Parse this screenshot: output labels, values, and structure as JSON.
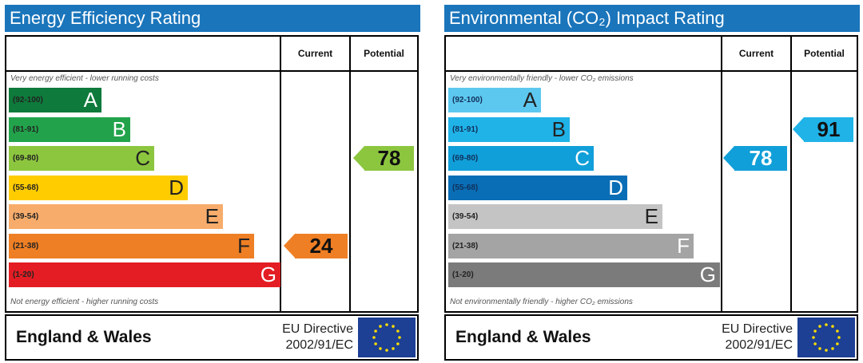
{
  "colors": {
    "title_bar": "#1a75bb",
    "energy_bands": [
      "#0e7a3b",
      "#22a34b",
      "#8cc63f",
      "#ffcc00",
      "#f7ac6b",
      "#ef7f24",
      "#e31d23"
    ],
    "co2_bands": [
      "#5dc8ef",
      "#20b3e8",
      "#119fd9",
      "#0a6eb6",
      "#c4c4c4",
      "#a4a4a4",
      "#7b7b7b"
    ],
    "eu_flag_blue": "#1d3f94",
    "eu_star": "#ffdd00"
  },
  "panels": [
    {
      "title": "Energy Efficiency Rating",
      "header_current": "Current",
      "header_potential": "Potential",
      "caption_top": "Very energy efficient - lower running costs",
      "caption_bottom": "Not energy efficient - higher running costs",
      "footer_region": "England & Wales",
      "footer_directive_line1": "EU Directive",
      "footer_directive_line2": "2002/91/EC"
    },
    {
      "title": "Environmental (CO₂) Impact Rating",
      "header_current": "Current",
      "header_potential": "Potential",
      "caption_top": "Very environmentally friendly - lower CO₂ emissions",
      "caption_bottom": "Not environmentally friendly - higher CO₂ emissions",
      "footer_region": "England & Wales",
      "footer_directive_line1": "EU Directive",
      "footer_directive_line2": "2002/91/EC"
    }
  ],
  "chart_data": [
    {
      "type": "table",
      "title": "Energy Efficiency Rating",
      "bands": [
        {
          "range": "(92-100)",
          "letter": "A",
          "min": 92,
          "max": 100
        },
        {
          "range": "(81-91)",
          "letter": "B",
          "min": 81,
          "max": 91
        },
        {
          "range": "(69-80)",
          "letter": "C",
          "min": 69,
          "max": 80
        },
        {
          "range": "(55-68)",
          "letter": "D",
          "min": 55,
          "max": 68
        },
        {
          "range": "(39-54)",
          "letter": "E",
          "min": 39,
          "max": 54
        },
        {
          "range": "(21-38)",
          "letter": "F",
          "min": 21,
          "max": 38
        },
        {
          "range": "(1-20)",
          "letter": "G",
          "min": 1,
          "max": 20
        }
      ],
      "current": {
        "value": 24,
        "band": "F"
      },
      "potential": {
        "value": 78,
        "band": "C"
      }
    },
    {
      "type": "table",
      "title": "Environmental (CO₂) Impact Rating",
      "bands": [
        {
          "range": "(92-100)",
          "letter": "A",
          "min": 92,
          "max": 100
        },
        {
          "range": "(81-91)",
          "letter": "B",
          "min": 81,
          "max": 91
        },
        {
          "range": "(69-80)",
          "letter": "C",
          "min": 69,
          "max": 80
        },
        {
          "range": "(55-68)",
          "letter": "D",
          "min": 55,
          "max": 68
        },
        {
          "range": "(39-54)",
          "letter": "E",
          "min": 39,
          "max": 54
        },
        {
          "range": "(21-38)",
          "letter": "F",
          "min": 21,
          "max": 38
        },
        {
          "range": "(1-20)",
          "letter": "G",
          "min": 1,
          "max": 20
        }
      ],
      "current": {
        "value": 78,
        "band": "C"
      },
      "potential": {
        "value": 91,
        "band": "B"
      }
    }
  ]
}
